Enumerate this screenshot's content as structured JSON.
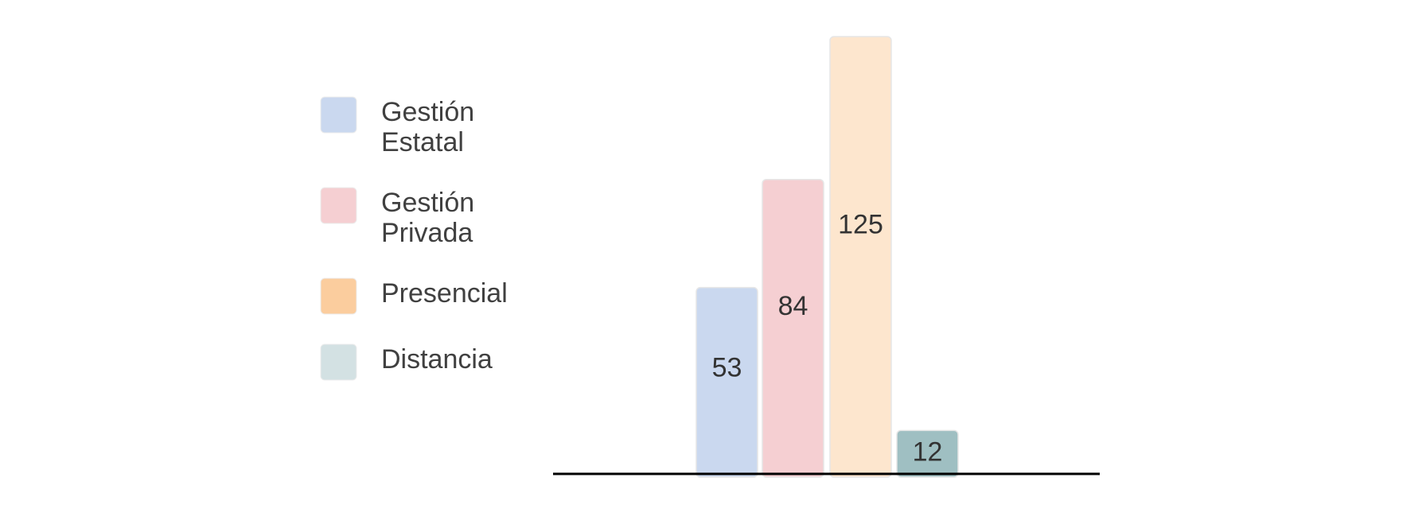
{
  "chart_data": {
    "type": "bar",
    "title": "",
    "xlabel": "",
    "ylabel": "",
    "ylim": [
      0,
      125
    ],
    "grid": false,
    "legend_position": "left",
    "series": [
      {
        "name": "Gestión Estatal",
        "legend_lines": [
          "Gestión",
          "Estatal"
        ],
        "value": 53,
        "color": "#cad8ef",
        "label_color": "#333333"
      },
      {
        "name": "Gestión Privada",
        "legend_lines": [
          "Gestión",
          "Privada"
        ],
        "value": 84,
        "color": "#f5cfd2",
        "label_color": "#333333"
      },
      {
        "name": "Presencial",
        "legend_lines": [
          "Presencial"
        ],
        "value": 125,
        "color": "#fde6ce",
        "legend_color": "#fbcd9e",
        "label_color": "#333333"
      },
      {
        "name": "Distancia",
        "legend_lines": [
          "Distancia"
        ],
        "value": 12,
        "color": "#9fbfc2",
        "legend_color": "#d3e1e3",
        "label_color": "#333333"
      }
    ]
  }
}
